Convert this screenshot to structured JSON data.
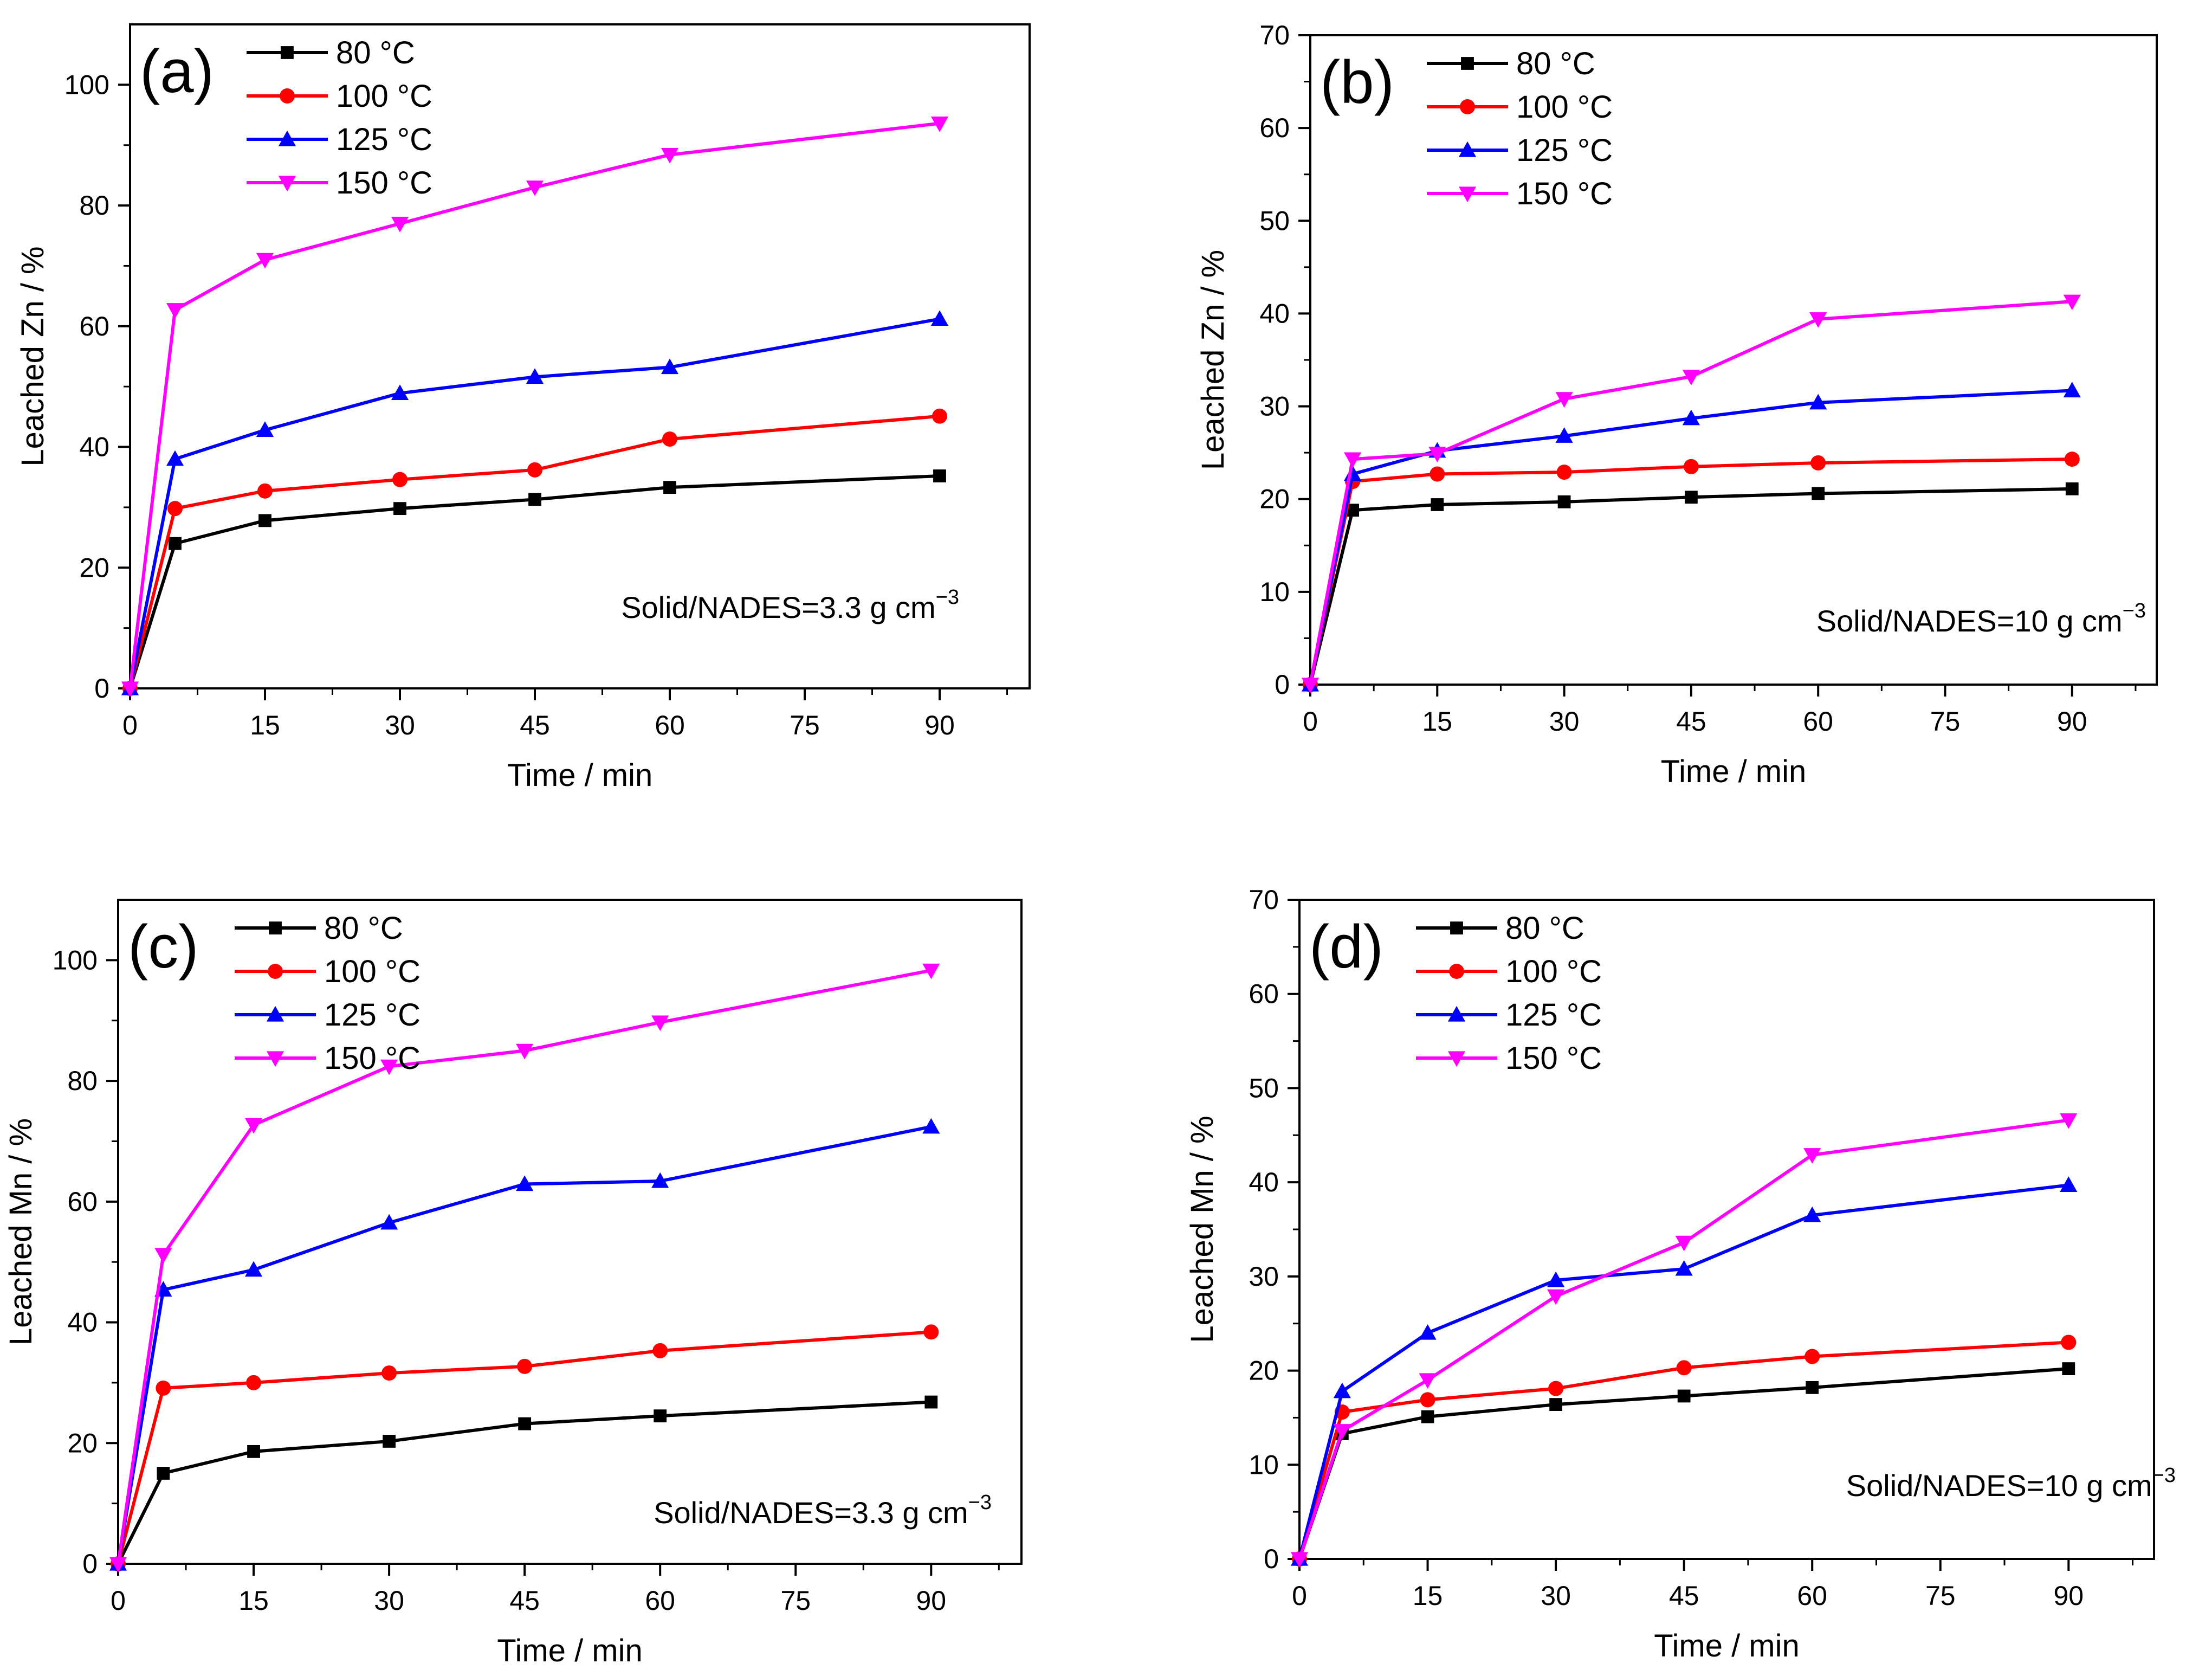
{
  "chart_data": [
    {
      "type": "line",
      "panel_label": "(a)",
      "ylabel": "Leached Zn / %",
      "xlabel": "Time / min",
      "annotation": {
        "text": "Solid/NADES=3.3 g cm",
        "sup": "−3"
      },
      "xlim": [
        0,
        100
      ],
      "ylim": [
        0,
        110
      ],
      "xticks": [
        0,
        15,
        30,
        45,
        60,
        75,
        90
      ],
      "yticks": [
        0,
        20,
        40,
        60,
        80,
        100
      ],
      "x": [
        0,
        5,
        15,
        30,
        45,
        60,
        90
      ],
      "legend_position": "top-left",
      "series": [
        {
          "name": "80 °C",
          "color": "#000000",
          "marker": "square",
          "values": [
            0,
            24,
            27.8,
            29.8,
            31.3,
            33.3,
            35.2
          ]
        },
        {
          "name": "100 °C",
          "color": "#ff0000",
          "marker": "circle",
          "values": [
            0,
            29.8,
            32.7,
            34.6,
            36.2,
            41.3,
            45.1
          ]
        },
        {
          "name": "125 °C",
          "color": "#0000ff",
          "marker": "triangle-up",
          "values": [
            0,
            38,
            42.8,
            48.9,
            51.6,
            53.2,
            61.2
          ]
        },
        {
          "name": "150 °C",
          "color": "#ff00ff",
          "marker": "triangle-down",
          "values": [
            0,
            62.7,
            71,
            77,
            83,
            88.4,
            93.6
          ]
        }
      ]
    },
    {
      "type": "line",
      "panel_label": "(b)",
      "ylabel": "Leached Zn / %",
      "xlabel": "Time / min",
      "annotation": {
        "text": "Solid/NADES=10 g cm",
        "sup": "−3"
      },
      "xlim": [
        0,
        100
      ],
      "ylim": [
        0,
        70
      ],
      "xticks": [
        0,
        15,
        30,
        45,
        60,
        75,
        90
      ],
      "yticks": [
        0,
        10,
        20,
        30,
        40,
        50,
        60,
        70
      ],
      "x": [
        0,
        5,
        15,
        30,
        45,
        60,
        90
      ],
      "legend_position": "top-left",
      "series": [
        {
          "name": "80 °C",
          "color": "#000000",
          "marker": "square",
          "values": [
            0,
            18.8,
            19.4,
            19.7,
            20.2,
            20.6,
            21.1
          ]
        },
        {
          "name": "100 °C",
          "color": "#ff0000",
          "marker": "circle",
          "values": [
            0,
            21.9,
            22.7,
            22.9,
            23.5,
            23.9,
            24.3
          ]
        },
        {
          "name": "125 °C",
          "color": "#0000ff",
          "marker": "triangle-up",
          "values": [
            0,
            22.7,
            25.2,
            26.8,
            28.7,
            30.4,
            31.7
          ]
        },
        {
          "name": "150 °C",
          "color": "#ff00ff",
          "marker": "triangle-down",
          "values": [
            0,
            24.3,
            24.9,
            30.8,
            33.2,
            39.4,
            41.3
          ]
        }
      ]
    },
    {
      "type": "line",
      "panel_label": "(c)",
      "ylabel": "Leached Mn / %",
      "xlabel": "Time / min",
      "annotation": {
        "text": "Solid/NADES=3.3 g cm",
        "sup": "−3"
      },
      "xlim": [
        0,
        100
      ],
      "ylim": [
        0,
        110
      ],
      "xticks": [
        0,
        15,
        30,
        45,
        60,
        75,
        90
      ],
      "yticks": [
        0,
        20,
        40,
        60,
        80,
        100
      ],
      "x": [
        0,
        5,
        15,
        30,
        45,
        60,
        90
      ],
      "legend_position": "top-left",
      "series": [
        {
          "name": "80 °C",
          "color": "#000000",
          "marker": "square",
          "values": [
            0,
            15,
            18.6,
            20.3,
            23.2,
            24.5,
            26.8
          ]
        },
        {
          "name": "100 °C",
          "color": "#ff0000",
          "marker": "circle",
          "values": [
            0,
            29.1,
            30,
            31.6,
            32.7,
            35.3,
            38.4
          ]
        },
        {
          "name": "125 °C",
          "color": "#0000ff",
          "marker": "triangle-up",
          "values": [
            0,
            45.4,
            48.7,
            56.5,
            62.9,
            63.4,
            72.4
          ]
        },
        {
          "name": "150 °C",
          "color": "#ff00ff",
          "marker": "triangle-down",
          "values": [
            0,
            51.2,
            72.7,
            82.4,
            85,
            89.7,
            98.3
          ]
        }
      ]
    },
    {
      "type": "line",
      "panel_label": "(d)",
      "ylabel": "Leached Mn / %",
      "xlabel": "Time / min",
      "annotation": {
        "text": "Solid/NADES=10 g cm",
        "sup": "−3"
      },
      "xlim": [
        0,
        100
      ],
      "ylim": [
        0,
        70
      ],
      "xticks": [
        0,
        15,
        30,
        45,
        60,
        75,
        90
      ],
      "yticks": [
        0,
        10,
        20,
        30,
        40,
        50,
        60,
        70
      ],
      "x": [
        0,
        5,
        15,
        30,
        45,
        60,
        90
      ],
      "legend_position": "top-left",
      "series": [
        {
          "name": "80 °C",
          "color": "#000000",
          "marker": "square",
          "values": [
            0,
            13.3,
            15.1,
            16.4,
            17.3,
            18.2,
            20.2
          ]
        },
        {
          "name": "100 °C",
          "color": "#ff0000",
          "marker": "circle",
          "values": [
            0,
            15.6,
            16.9,
            18.1,
            20.3,
            21.5,
            23
          ]
        },
        {
          "name": "125 °C",
          "color": "#0000ff",
          "marker": "triangle-up",
          "values": [
            0,
            17.8,
            24,
            29.6,
            30.8,
            36.5,
            39.7
          ]
        },
        {
          "name": "150 °C",
          "color": "#ff00ff",
          "marker": "triangle-down",
          "values": [
            0,
            13.6,
            19,
            27.9,
            33.6,
            42.9,
            46.6
          ]
        }
      ]
    }
  ]
}
